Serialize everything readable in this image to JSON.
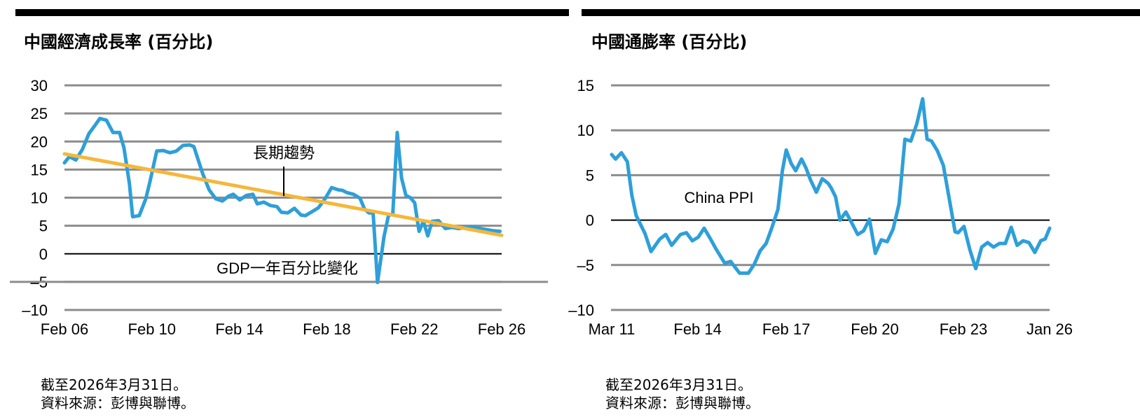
{
  "notes": {
    "asof": "截至2026年3月31日。",
    "source": "資料來源：彭博與聯博。"
  },
  "colors": {
    "series": "#2e9fd9",
    "trend": "#f5b73b",
    "grid": "#8c8c8c",
    "zero": "#000000"
  },
  "chart_data": [
    {
      "type": "line",
      "title": "中國經濟成長率 (百分比)",
      "ylim": [
        -10,
        30
      ],
      "yticks": [
        "30",
        "25",
        "20",
        "15",
        "10",
        "5",
        "0",
        "–5",
        "–10"
      ],
      "ytick_values": [
        30,
        25,
        20,
        15,
        10,
        5,
        0,
        -5,
        -10
      ],
      "xlim": [
        2006.08,
        2026.08
      ],
      "xticks": [
        "Feb 06",
        "Feb 10",
        "Feb 14",
        "Feb 18",
        "Feb 22",
        "Feb 26"
      ],
      "xtick_values": [
        2006.08,
        2010.08,
        2014.08,
        2018.08,
        2022.08,
        2026.08
      ],
      "annotations": {
        "trend_label": "長期趨勢",
        "series_label": "GDP一年百分比變化"
      },
      "series": [
        {
          "name": "GDP一年百分比變化",
          "x": [
            2006.08,
            2006.3,
            2006.6,
            2006.9,
            2007.2,
            2007.5,
            2007.7,
            2008.0,
            2008.3,
            2008.6,
            2008.8,
            2009.05,
            2009.2,
            2009.5,
            2009.8,
            2010.0,
            2010.3,
            2010.6,
            2010.9,
            2011.2,
            2011.5,
            2011.8,
            2012.0,
            2012.4,
            2012.7,
            2013.0,
            2013.3,
            2013.6,
            2013.8,
            2014.1,
            2014.4,
            2014.7,
            2014.9,
            2015.2,
            2015.5,
            2015.8,
            2016.0,
            2016.3,
            2016.6,
            2016.9,
            2017.1,
            2017.4,
            2017.7,
            2018.0,
            2018.3,
            2018.6,
            2018.8,
            2019.0,
            2019.3,
            2019.6,
            2019.8,
            2020.0,
            2020.2,
            2020.4,
            2020.7,
            2020.9,
            2021.1,
            2021.3,
            2021.5,
            2021.7,
            2021.9,
            2022.1,
            2022.3,
            2022.5,
            2022.7,
            2022.9,
            2023.2,
            2023.5,
            2023.8,
            2024.1,
            2024.5,
            2024.8,
            2025.1,
            2025.4,
            2025.7,
            2026.0
          ],
          "values": [
            16.2,
            17.3,
            16.7,
            18.6,
            21.4,
            23.0,
            24.1,
            23.8,
            21.6,
            21.6,
            18.9,
            12.5,
            6.6,
            6.8,
            9.8,
            13.0,
            18.3,
            18.4,
            18.0,
            18.3,
            19.3,
            19.4,
            19.1,
            14.3,
            11.4,
            9.8,
            9.4,
            10.3,
            10.6,
            9.6,
            10.4,
            10.6,
            8.9,
            9.2,
            8.6,
            8.4,
            7.4,
            7.3,
            8.1,
            6.9,
            6.8,
            7.5,
            8.2,
            9.8,
            11.8,
            11.4,
            11.3,
            10.9,
            10.6,
            9.9,
            8.0,
            7.3,
            7.3,
            -5.1,
            3.1,
            6.8,
            7.1,
            21.6,
            13.5,
            10.4,
            10.0,
            9.1,
            4.0,
            5.8,
            3.2,
            5.8,
            5.9,
            4.5,
            4.7,
            4.5,
            4.7,
            4.8,
            4.5,
            4.3,
            4.1,
            4.0
          ]
        },
        {
          "name": "長期趨勢",
          "x": [
            2006.08,
            2026.08
          ],
          "values": [
            17.8,
            3.3
          ]
        }
      ]
    },
    {
      "type": "line",
      "title": "中國通膨率 (百分比)",
      "ylim": [
        -10,
        15
      ],
      "yticks": [
        "15",
        "10",
        "5",
        "0",
        "–5",
        "–10"
      ],
      "ytick_values": [
        15,
        10,
        5,
        0,
        -5,
        -10
      ],
      "xlim": [
        2011.17,
        2026.0
      ],
      "xticks": [
        "Mar 11",
        "Feb 14",
        "Feb 17",
        "Feb 20",
        "Feb 23",
        "Jan 26"
      ],
      "xtick_values": [
        2011.17,
        2014.08,
        2017.08,
        2020.08,
        2023.08,
        2026.0
      ],
      "annotations": {
        "series_label": "China PPI"
      },
      "series": [
        {
          "name": "China PPI",
          "x": [
            2011.17,
            2011.3,
            2011.5,
            2011.7,
            2011.85,
            2012.0,
            2012.3,
            2012.5,
            2012.8,
            2013.0,
            2013.2,
            2013.35,
            2013.5,
            2013.7,
            2013.9,
            2014.1,
            2014.3,
            2014.5,
            2014.7,
            2015.0,
            2015.2,
            2015.5,
            2015.8,
            2016.0,
            2016.2,
            2016.4,
            2016.6,
            2016.8,
            2016.95,
            2017.08,
            2017.25,
            2017.4,
            2017.6,
            2017.75,
            2017.9,
            2018.1,
            2018.3,
            2018.5,
            2018.6,
            2018.75,
            2018.9,
            2019.1,
            2019.3,
            2019.5,
            2019.7,
            2019.9,
            2020.1,
            2020.3,
            2020.5,
            2020.7,
            2020.9,
            2021.1,
            2021.3,
            2021.5,
            2021.7,
            2021.85,
            2022.0,
            2022.2,
            2022.4,
            2022.6,
            2022.8,
            2022.9,
            2023.1,
            2023.3,
            2023.5,
            2023.7,
            2023.9,
            2024.1,
            2024.3,
            2024.5,
            2024.7,
            2024.9,
            2025.1,
            2025.3,
            2025.5,
            2025.7,
            2025.85,
            2026.0
          ],
          "values": [
            7.3,
            6.8,
            7.5,
            6.5,
            2.8,
            0.5,
            -1.5,
            -3.5,
            -2.1,
            -1.6,
            -2.8,
            -2.2,
            -1.6,
            -1.4,
            -2.3,
            -1.9,
            -0.9,
            -2.0,
            -3.2,
            -4.8,
            -4.6,
            -5.9,
            -5.9,
            -4.9,
            -3.4,
            -2.6,
            -0.8,
            1.2,
            5.5,
            7.8,
            6.3,
            5.5,
            6.8,
            5.8,
            4.5,
            3.1,
            4.6,
            4.1,
            3.6,
            2.6,
            0.0,
            0.9,
            -0.3,
            -1.6,
            -1.2,
            0.1,
            -3.7,
            -2.2,
            -2.4,
            -1.0,
            1.8,
            9.0,
            8.8,
            10.7,
            13.5,
            9.0,
            8.8,
            7.7,
            6.1,
            2.4,
            -1.3,
            -1.4,
            -0.7,
            -3.3,
            -5.4,
            -3.0,
            -2.5,
            -3.0,
            -2.6,
            -2.6,
            -0.8,
            -2.8,
            -2.3,
            -2.5,
            -3.6,
            -2.3,
            -2.1,
            -0.9
          ]
        }
      ]
    }
  ]
}
